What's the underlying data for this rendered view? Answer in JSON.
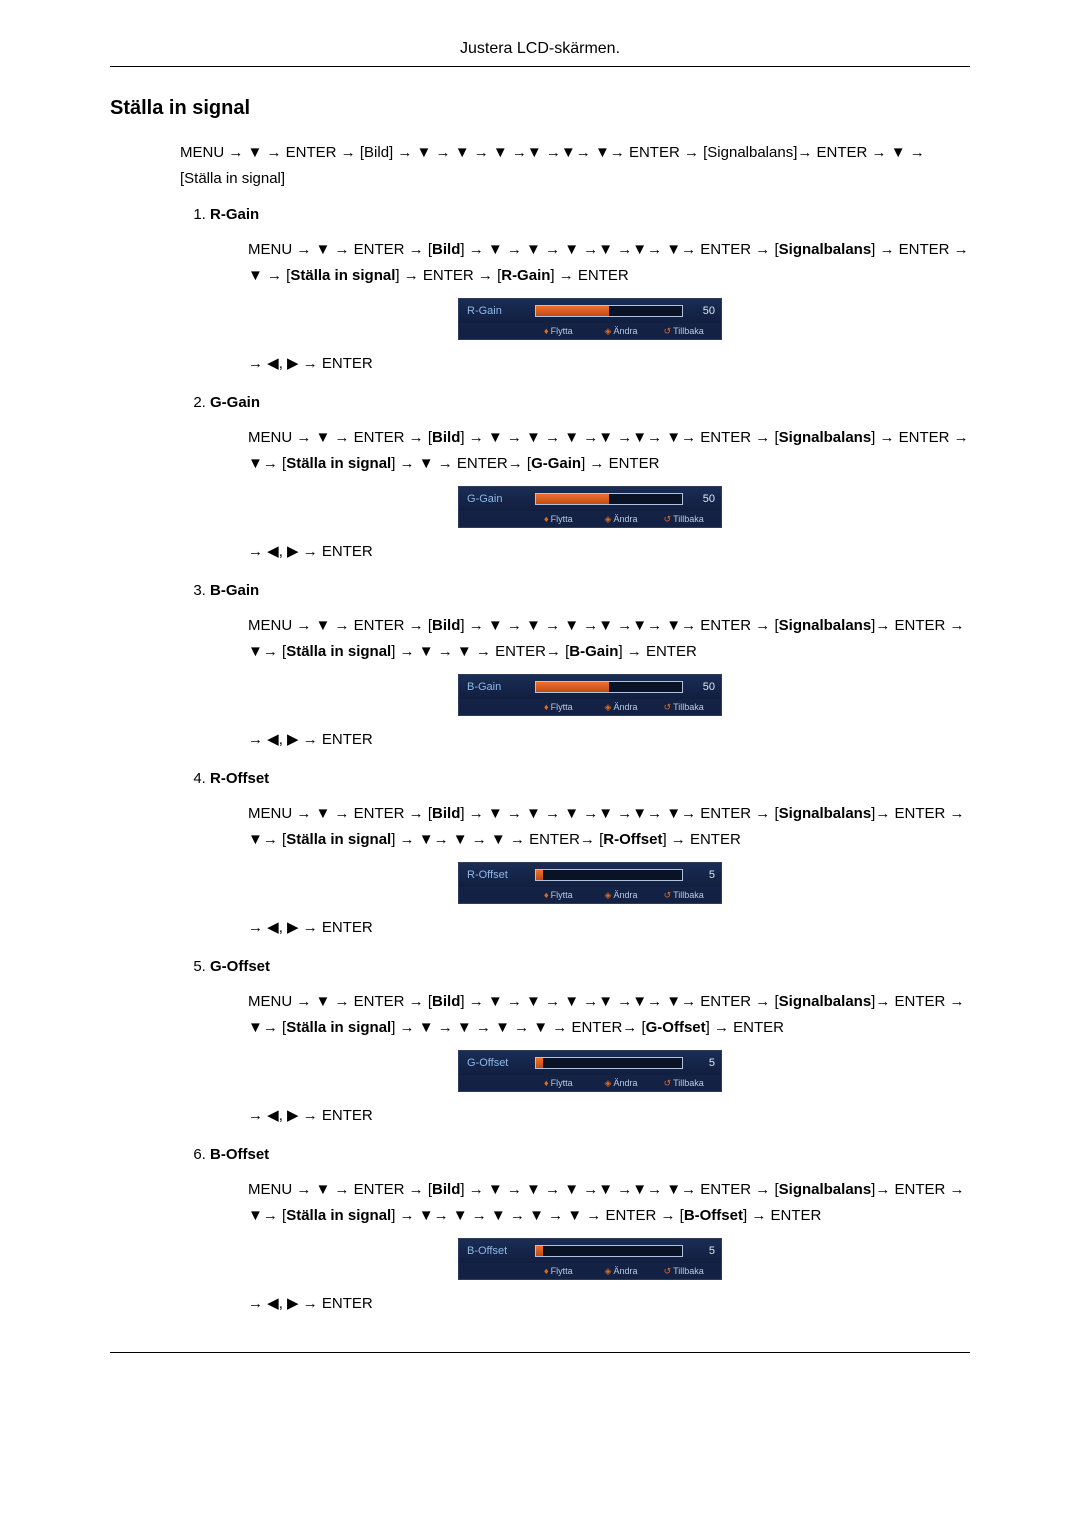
{
  "header_title": "Justera LCD-skärmen.",
  "section_title": "Ställa in signal",
  "intro_line": "MENU → ▼ → ENTER → [Bild] → ▼ → ▼ → ▼ →▼ →▼→ ▼→ ENTER → [Signalbalans]→ ENTER → ▼ → [Ställa in signal]",
  "enter_line": "→ ◀, ▶ → ENTER",
  "osd_footer": {
    "move": "Flytta",
    "adjust": "Ändra",
    "return": "Tillbaka"
  },
  "colors": {
    "osd_bg_top": "#1a2d55",
    "osd_bg_bottom": "#0b1430",
    "osd_text": "#8fb8e8",
    "osd_bar_border": "#b0c4e0",
    "osd_bar_fill_top": "#f07030",
    "osd_bar_fill_bottom": "#c04a10",
    "osd_glyph": "#e06a20"
  },
  "items": [
    {
      "title": "R-Gain",
      "path": "MENU → ▼ → ENTER → [Bild] → ▼ → ▼ → ▼ →▼ →▼→ ▼→ ENTER → [Signalbalans] → ENTER → ▼ → [Ställa in signal] → ENTER → [R-Gain] → ENTER",
      "osd_label": "R-Gain",
      "osd_value": "50",
      "osd_fill_pct": 50
    },
    {
      "title": "G-Gain",
      "path": "MENU → ▼ → ENTER → [Bild] → ▼ → ▼ → ▼ →▼ →▼→ ▼→ ENTER → [Signalbalans] → ENTER → ▼→ [Ställa in signal] → ▼ → ENTER→ [G-Gain] → ENTER",
      "osd_label": "G-Gain",
      "osd_value": "50",
      "osd_fill_pct": 50
    },
    {
      "title": "B-Gain",
      "path": "MENU → ▼ → ENTER → [Bild] → ▼ → ▼ → ▼ →▼ →▼→ ▼→ ENTER → [Signalbalans]→ ENTER → ▼→ [Ställa in signal] → ▼ → ▼ → ENTER→ [B-Gain] → ENTER",
      "osd_label": "B-Gain",
      "osd_value": "50",
      "osd_fill_pct": 50
    },
    {
      "title": "R-Offset",
      "path": "MENU → ▼ → ENTER → [Bild] → ▼ → ▼ → ▼ →▼ →▼→ ▼→ ENTER → [Signalbalans]→ ENTER → ▼→ [Ställa in signal] → ▼→ ▼ → ▼ → ENTER→ [R-Offset] → ENTER",
      "osd_label": "R-Offset",
      "osd_value": "5",
      "osd_fill_pct": 5
    },
    {
      "title": "G-Offset",
      "path": "MENU → ▼ → ENTER → [Bild] → ▼ → ▼ → ▼ →▼ →▼→ ▼→ ENTER → [Signalbalans]→ ENTER → ▼→ [Ställa in signal] → ▼ → ▼ → ▼ → ▼ → ENTER→ [G-Offset] → ENTER",
      "osd_label": "G-Offset",
      "osd_value": "5",
      "osd_fill_pct": 5
    },
    {
      "title": "B-Offset",
      "path": "MENU → ▼ → ENTER → [Bild] → ▼ → ▼ → ▼ →▼ →▼→ ▼→ ENTER → [Signalbalans]→ ENTER → ▼→ [Ställa in signal] → ▼→ ▼ → ▼ → ▼ → ▼ → ENTER → [B-Offset] → ENTER",
      "osd_label": "B-Offset",
      "osd_value": "5",
      "osd_fill_pct": 5
    }
  ]
}
